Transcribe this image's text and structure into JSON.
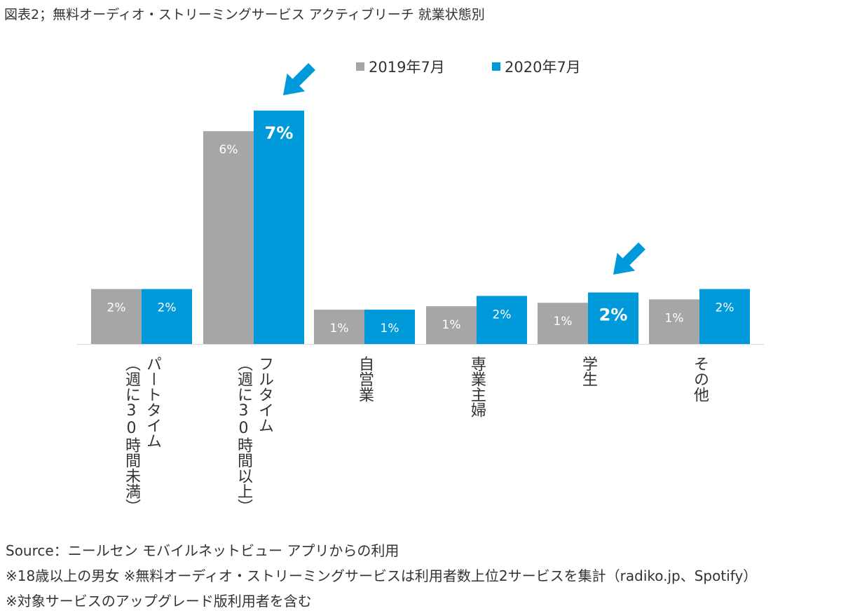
{
  "title": "図表2；無料オーディオ・ストリーミングサービス アクティブリーチ 就業状態別",
  "chart_data": {
    "type": "bar",
    "categories": [
      [
        "パートタイム",
        "（週に30時間未満）"
      ],
      [
        "フルタイム",
        "（週に30時間以上）"
      ],
      [
        "自営業"
      ],
      [
        "専業主婦"
      ],
      [
        "学生"
      ],
      [
        "その他"
      ]
    ],
    "series": [
      {
        "name": "2019年7月",
        "color": "#a6a6a6",
        "values": [
          2,
          6,
          1,
          1,
          1,
          1
        ],
        "labels": [
          "2%",
          "6%",
          "1%",
          "1%",
          "1%",
          "1%"
        ]
      },
      {
        "name": "2020年7月",
        "color": "#0099d9",
        "values": [
          2,
          7,
          1,
          2,
          2,
          2
        ],
        "labels": [
          "2%",
          "7%",
          "1%",
          "2%",
          "2%",
          "2%"
        ]
      }
    ],
    "highlighted_labels": [
      "7%",
      "2%"
    ],
    "arrows": [
      "フルタイム 2020年7月",
      "学生 2020年7月"
    ],
    "legend_position": "top-right",
    "grid": false
  },
  "footnotes": [
    "Source：ニールセン モバイルネットビュー アプリからの利用",
    "※18歳以上の男女 ※無料オーディオ・ストリーミングサービスは利用者数上位2サービスを集計（radiko.jp、Spotify）",
    "※対象サービスのアップグレード版利用者を含む"
  ]
}
